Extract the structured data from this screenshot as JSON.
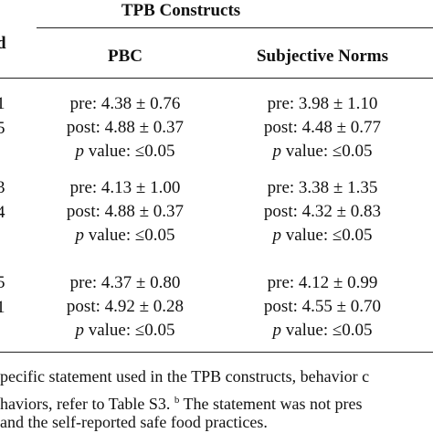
{
  "header": {
    "title": "TPB Constructs",
    "stub": "d",
    "columns": [
      "PBC",
      "Subjective Norms"
    ]
  },
  "rows": [
    {
      "stub": [
        "1",
        "5"
      ],
      "cells": [
        [
          "pre: 4.38 ± 0.76",
          "post: 4.88 ± 0.37"
        ],
        [
          "pre: 3.98 ± 1.10",
          "post: 4.48 ± 0.77"
        ]
      ],
      "p": [
        {
          "italic": "p",
          "text": " value: ≤0.05"
        },
        {
          "italic": "p",
          "text": " value: ≤0.05"
        }
      ]
    },
    {
      "stub": [
        "3",
        "4"
      ],
      "cells": [
        [
          "pre: 4.13 ± 1.00",
          "post: 4.88 ± 0.37"
        ],
        [
          "pre: 3.38 ± 1.35",
          "post: 4.32 ± 0.83"
        ]
      ],
      "p": [
        {
          "italic": "p",
          "text": " value: ≤0.05"
        },
        {
          "italic": "p",
          "text": " value: ≤0.05"
        }
      ]
    },
    {
      "stub": [
        "5",
        "1"
      ],
      "cells": [
        [
          "pre: 4.37 ± 0.80",
          "post: 4.92 ± 0.28"
        ],
        [
          "pre: 4.12 ± 0.99",
          "post: 4.55 ± 0.70"
        ]
      ],
      "p": [
        {
          "italic": "p",
          "text": " value: ≤0.05"
        },
        {
          "italic": "p",
          "text": " value: ≤0.05"
        }
      ]
    }
  ],
  "footnotes": {
    "line1": "pecific statement used in the TPB constructs, behavior c",
    "line2a": "haviors, refer to Table S3. ",
    "line2sup": "b",
    "line2b": " The statement was not pres",
    "line3": "and the self-reported safe food practices."
  }
}
